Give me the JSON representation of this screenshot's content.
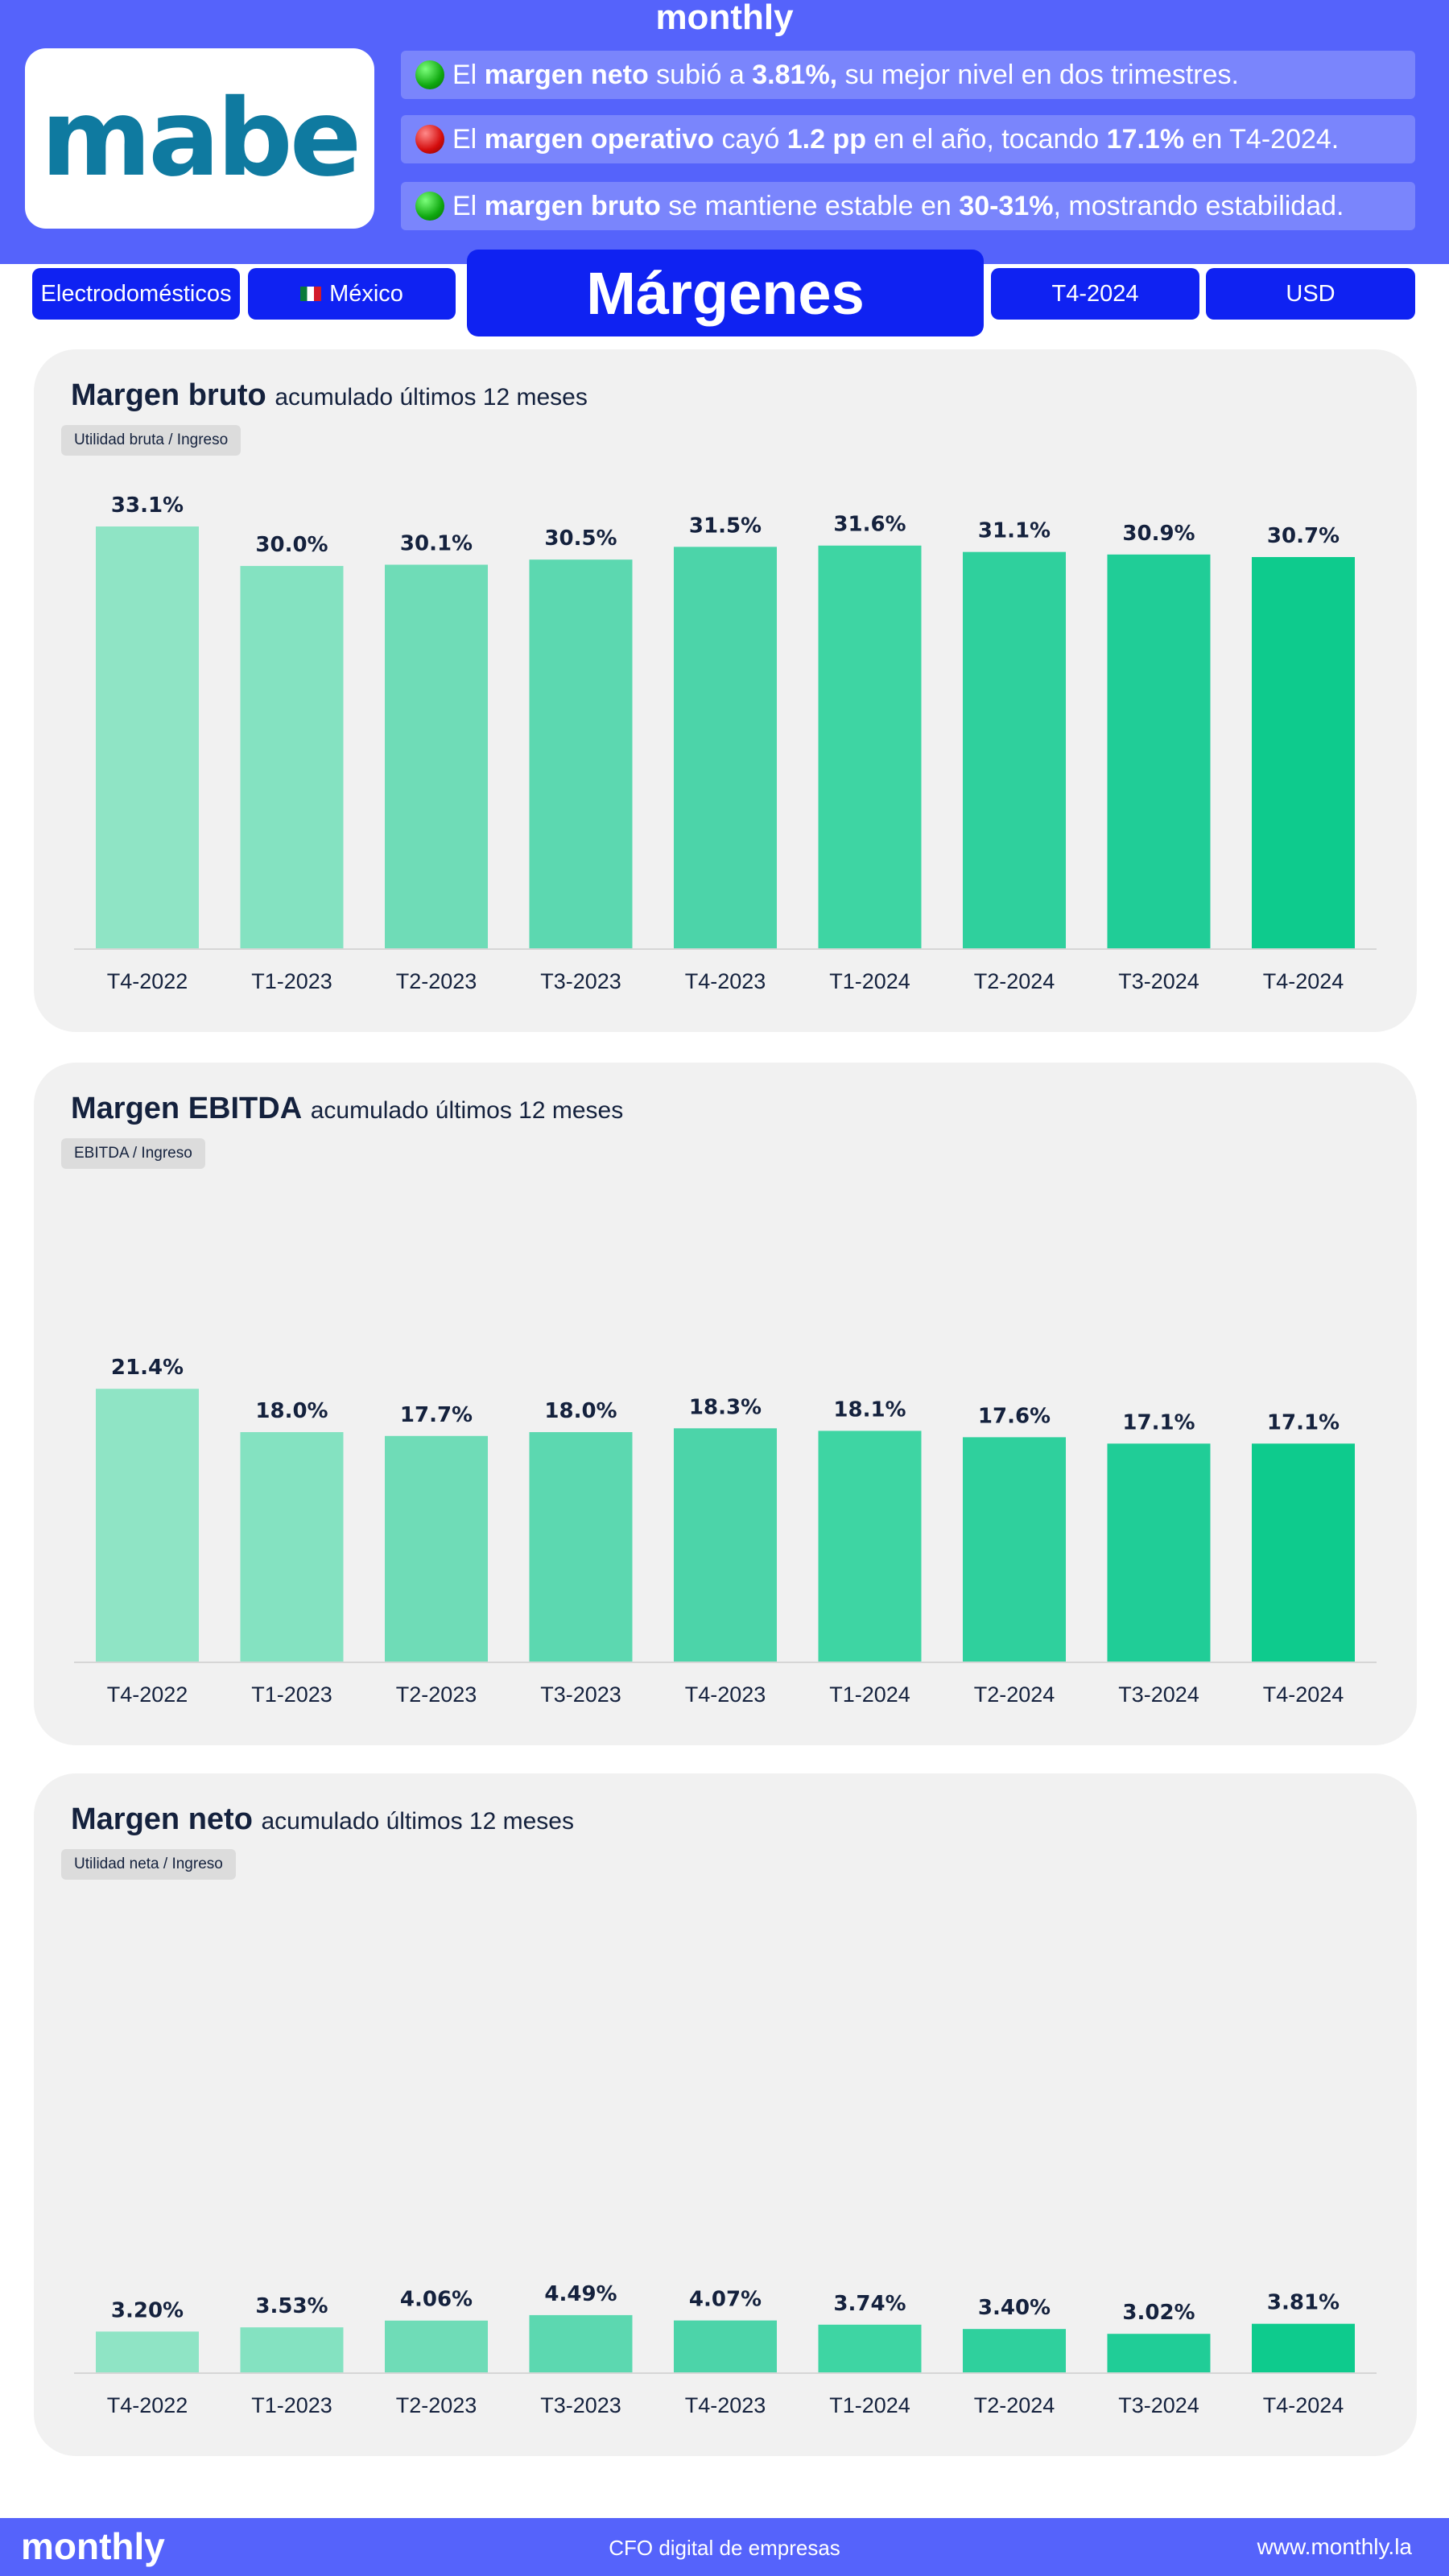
{
  "brand": "monthly",
  "logo_text": "mabe",
  "highlights": [
    {
      "indicator": "green",
      "pre": "El ",
      "bold1": "margen neto",
      "mid": " subió a ",
      "bold2": "3.81%,",
      "post": " su mejor nivel en dos trimestres."
    },
    {
      "indicator": "red",
      "pre": "El ",
      "bold1": "margen operativo",
      "mid": " cayó ",
      "bold2": "1.2 pp",
      "post": " en el año, tocando ",
      "bold3": "17.1%",
      "post2": " en T4-2024."
    },
    {
      "indicator": "green",
      "pre": "El ",
      "bold1": "margen bruto",
      "mid": " se mantiene estable en ",
      "bold2": "30-31%",
      "post": ", mostrando estabilidad."
    }
  ],
  "filters": {
    "sector": "Electrodomésticos",
    "country": "México",
    "title": "Márgenes",
    "period": "T4-2024",
    "currency": "USD"
  },
  "colors": [
    "#8fe4c5",
    "#84e2c1",
    "#6fdcb7",
    "#5cd8b0",
    "#4cd4a9",
    "#3ed5a3",
    "#2fd09d",
    "#20cd97",
    "#0ecb8d"
  ],
  "chart_data": [
    {
      "type": "bar",
      "title": "Margen bruto",
      "subtitle": "acumulado últimos 12 meses",
      "formula": "Utilidad bruta /  Ingreso",
      "categories": [
        "T4-2022",
        "T1-2023",
        "T2-2023",
        "T3-2023",
        "T4-2023",
        "T1-2024",
        "T2-2024",
        "T3-2024",
        "T4-2024"
      ],
      "values": [
        33.1,
        30.0,
        30.1,
        30.5,
        31.5,
        31.6,
        31.1,
        30.9,
        30.7
      ],
      "labels": [
        "33.1%",
        "30.0%",
        "30.1%",
        "30.5%",
        "31.5%",
        "31.6%",
        "31.1%",
        "30.9%",
        "30.7%"
      ],
      "ylim": [
        0,
        33.1
      ]
    },
    {
      "type": "bar",
      "title": "Margen EBITDA",
      "subtitle": "acumulado últimos 12 meses",
      "formula": "EBITDA /  Ingreso",
      "categories": [
        "T4-2022",
        "T1-2023",
        "T2-2023",
        "T3-2023",
        "T4-2023",
        "T1-2024",
        "T2-2024",
        "T3-2024",
        "T4-2024"
      ],
      "values": [
        21.4,
        18.0,
        17.7,
        18.0,
        18.3,
        18.1,
        17.6,
        17.1,
        17.1
      ],
      "labels": [
        "21.4%",
        "18.0%",
        "17.7%",
        "18.0%",
        "18.3%",
        "18.1%",
        "17.6%",
        "17.1%",
        "17.1%"
      ],
      "ylim": [
        0,
        33.1
      ]
    },
    {
      "type": "bar",
      "title": "Margen neto",
      "subtitle": "acumulado últimos 12 meses",
      "formula": "Utilidad neta /  Ingreso",
      "categories": [
        "T4-2022",
        "T1-2023",
        "T2-2023",
        "T3-2023",
        "T4-2023",
        "T1-2024",
        "T2-2024",
        "T3-2024",
        "T4-2024"
      ],
      "values": [
        3.2,
        3.53,
        4.06,
        4.49,
        4.07,
        3.74,
        3.4,
        3.02,
        3.81
      ],
      "labels": [
        "3.20%",
        "3.53%",
        "4.06%",
        "4.49%",
        "4.07%",
        "3.74%",
        "3.40%",
        "3.02%",
        "3.81%"
      ],
      "ylim": [
        0,
        33.1
      ]
    }
  ],
  "footer": {
    "brand": "monthly",
    "tagline": "CFO digital de empresas",
    "url": "www.monthly.la"
  }
}
